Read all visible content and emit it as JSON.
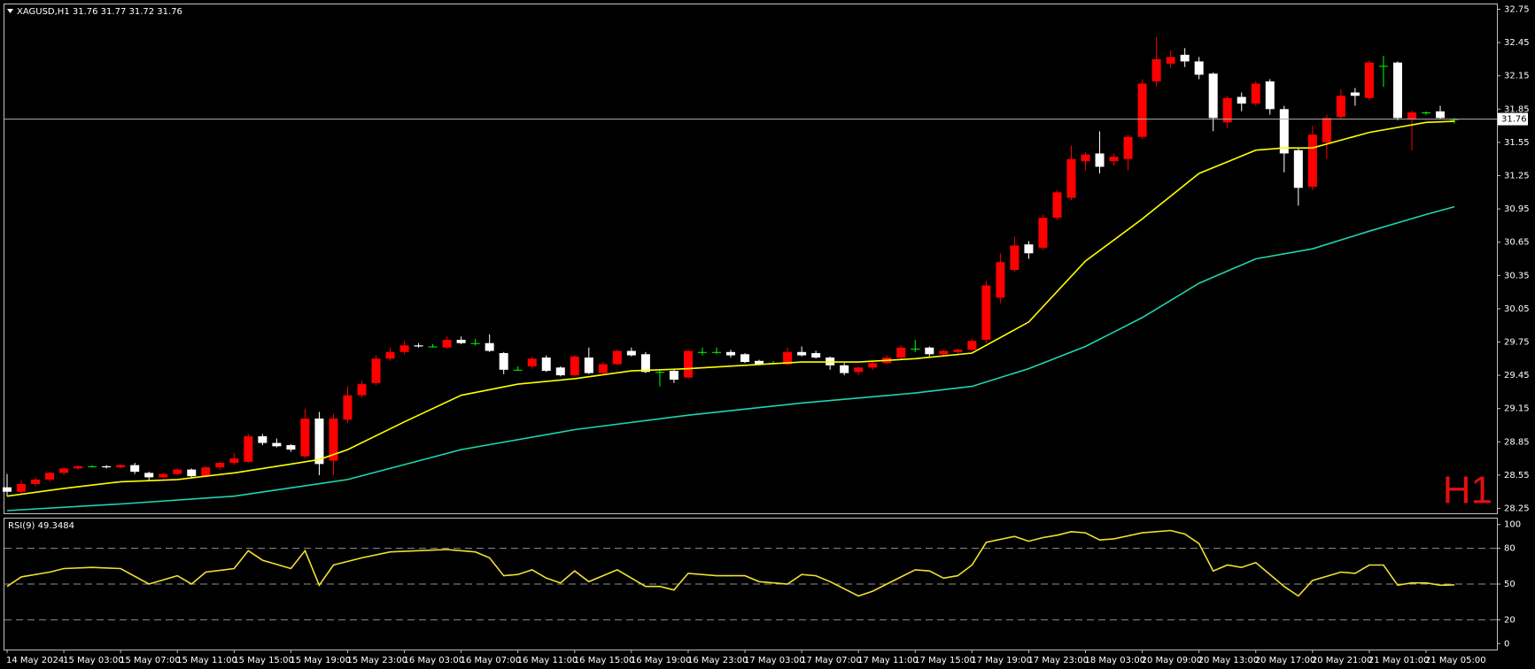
{
  "chart_data": [
    {
      "type": "candlestick",
      "title": "XAGUSD,H1  31.76 31.77 31.72 31.76",
      "watermark": "H1",
      "categories": [
        "14 May 2024",
        null,
        null,
        null,
        "15 May 03:00",
        null,
        null,
        null,
        "15 May 07:00",
        null,
        null,
        null,
        "15 May 11:00",
        null,
        null,
        null,
        "15 May 15:00",
        null,
        null,
        null,
        "15 May 19:00",
        null,
        null,
        null,
        "15 May 23:00",
        null,
        null,
        null,
        "16 May 03:00",
        null,
        null,
        null,
        "16 May 07:00",
        null,
        null,
        null,
        "16 May 11:00",
        null,
        null,
        null,
        "16 May 15:00",
        null,
        null,
        null,
        "16 May 19:00",
        null,
        null,
        null,
        "16 May 23:00",
        null,
        null,
        null,
        "17 May 03:00",
        null,
        null,
        null,
        "17 May 07:00",
        null,
        null,
        null,
        "17 May 11:00",
        null,
        null,
        null,
        "17 May 15:00",
        null,
        null,
        null,
        "17 May 19:00",
        null,
        null,
        null,
        "17 May 23:00",
        null,
        null,
        null,
        "18 May 03:00",
        null,
        null,
        null,
        "20 May 09:00",
        null,
        null,
        null,
        "20 May 13:00",
        null,
        null,
        null,
        "20 May 17:00",
        null,
        null,
        null,
        "20 May 21:00",
        null,
        null,
        null,
        "21 May 01:00",
        null,
        null,
        null,
        "21 May 05:00",
        null,
        null
      ],
      "open": [
        28.44,
        28.4,
        28.47,
        28.51,
        28.57,
        28.61,
        28.63,
        28.63,
        28.62,
        28.64,
        28.57,
        28.53,
        28.56,
        28.6,
        28.54,
        28.62,
        28.66,
        28.67,
        28.9,
        28.84,
        28.82,
        28.72,
        29.06,
        28.68,
        29.05,
        29.27,
        29.38,
        29.6,
        29.66,
        29.72,
        29.71,
        29.7,
        29.77,
        29.74,
        29.74,
        29.65,
        29.5,
        29.53,
        29.61,
        29.52,
        29.45,
        29.61,
        29.47,
        29.55,
        29.67,
        29.64,
        29.48,
        29.49,
        29.43,
        29.66,
        29.66,
        29.66,
        29.64,
        29.58,
        29.56,
        29.55,
        29.66,
        29.65,
        29.61,
        29.54,
        29.48,
        29.52,
        29.56,
        29.61,
        29.69,
        29.7,
        29.64,
        29.66,
        29.68,
        29.77,
        30.15,
        30.4,
        30.63,
        30.6,
        30.87,
        31.05,
        31.38,
        31.45,
        31.38,
        31.4,
        31.6,
        32.1,
        32.26,
        32.34,
        32.28,
        32.17,
        31.73,
        31.96,
        31.9,
        32.1,
        31.85,
        31.48,
        31.15,
        31.55,
        31.78,
        32.0,
        31.95,
        32.24,
        32.27,
        31.76,
        31.82,
        31.83,
        31.76
      ],
      "high": [
        28.56,
        28.5,
        28.53,
        28.58,
        28.62,
        28.64,
        28.64,
        28.64,
        28.65,
        28.66,
        28.58,
        28.57,
        28.61,
        28.61,
        28.63,
        28.67,
        28.75,
        28.92,
        28.92,
        28.88,
        28.83,
        29.15,
        29.12,
        29.1,
        29.35,
        29.4,
        29.63,
        29.7,
        29.76,
        29.74,
        29.73,
        29.8,
        29.8,
        29.78,
        29.82,
        29.66,
        29.53,
        29.62,
        29.63,
        29.53,
        29.63,
        29.7,
        29.57,
        29.68,
        29.7,
        29.66,
        29.5,
        29.51,
        29.68,
        29.7,
        29.7,
        29.68,
        29.65,
        29.59,
        29.58,
        29.7,
        29.71,
        29.67,
        29.62,
        29.56,
        29.53,
        29.57,
        29.63,
        29.72,
        29.77,
        29.71,
        29.68,
        29.69,
        29.78,
        30.3,
        30.55,
        30.7,
        30.66,
        30.9,
        31.12,
        31.52,
        31.46,
        31.65,
        31.45,
        31.62,
        32.12,
        32.5,
        32.38,
        32.4,
        32.32,
        32.18,
        31.97,
        32.0,
        32.1,
        32.12,
        31.88,
        31.5,
        31.7,
        31.8,
        32.03,
        32.04,
        32.29,
        32.33,
        32.28,
        31.84,
        31.83,
        31.88,
        31.77
      ],
      "low": [
        28.36,
        28.38,
        28.45,
        28.49,
        28.55,
        28.6,
        28.62,
        28.61,
        28.61,
        28.56,
        28.5,
        28.52,
        28.55,
        28.53,
        28.53,
        28.6,
        28.64,
        28.66,
        28.82,
        28.8,
        28.76,
        28.7,
        28.55,
        28.55,
        29.02,
        29.25,
        29.36,
        29.58,
        29.64,
        29.7,
        29.7,
        29.69,
        29.73,
        29.72,
        29.66,
        29.46,
        29.49,
        29.51,
        29.48,
        29.44,
        29.44,
        29.46,
        29.46,
        29.54,
        29.62,
        29.47,
        29.35,
        29.38,
        29.42,
        29.63,
        29.64,
        29.61,
        29.56,
        29.54,
        29.55,
        29.54,
        29.62,
        29.6,
        29.5,
        29.45,
        29.45,
        29.5,
        29.55,
        29.6,
        29.66,
        29.62,
        29.63,
        29.65,
        29.67,
        29.74,
        30.1,
        30.38,
        30.5,
        30.58,
        30.85,
        31.03,
        31.3,
        31.27,
        31.34,
        31.3,
        31.58,
        32.05,
        32.22,
        32.23,
        32.12,
        31.65,
        31.68,
        31.83,
        31.88,
        31.8,
        31.28,
        30.98,
        31.12,
        31.4,
        31.76,
        31.88,
        31.93,
        32.05,
        31.75,
        31.48,
        31.8,
        31.76,
        31.72
      ],
      "close": [
        28.4,
        28.47,
        28.51,
        28.57,
        28.61,
        28.63,
        28.63,
        28.62,
        28.64,
        28.58,
        28.53,
        28.56,
        28.6,
        28.54,
        28.62,
        28.66,
        28.7,
        28.9,
        28.84,
        28.81,
        28.78,
        29.06,
        28.65,
        29.06,
        29.27,
        29.37,
        29.6,
        29.66,
        29.72,
        29.71,
        29.71,
        29.77,
        29.74,
        29.74,
        29.67,
        29.5,
        29.5,
        29.6,
        29.49,
        29.45,
        29.62,
        29.47,
        29.55,
        29.67,
        29.63,
        29.48,
        29.48,
        29.41,
        29.67,
        29.66,
        29.66,
        29.63,
        29.57,
        29.55,
        29.56,
        29.66,
        29.63,
        29.61,
        29.54,
        29.47,
        29.52,
        29.56,
        29.61,
        29.7,
        29.69,
        29.64,
        29.67,
        29.68,
        29.76,
        30.26,
        30.47,
        30.62,
        30.55,
        30.87,
        31.1,
        31.4,
        31.44,
        31.33,
        31.42,
        31.6,
        32.08,
        32.3,
        32.32,
        32.28,
        32.16,
        31.77,
        31.95,
        31.9,
        32.08,
        31.85,
        31.45,
        31.14,
        31.62,
        31.77,
        31.97,
        31.97,
        32.27,
        32.24,
        31.77,
        31.82,
        31.82,
        31.77,
        31.76
      ],
      "up_color": "#ff0000",
      "down_color": "#ffffff",
      "doji_color": "#00ff00",
      "overlays": [
        {
          "color": "#ffff00",
          "x": [
            0,
            4,
            8,
            12,
            16,
            20,
            22,
            24,
            28,
            32,
            36,
            40,
            44,
            48,
            52,
            56,
            60,
            64,
            68,
            72,
            76,
            80,
            84,
            88,
            90,
            92,
            96,
            100,
            102
          ],
          "values": [
            28.36,
            28.43,
            28.49,
            28.51,
            28.57,
            28.65,
            28.69,
            28.78,
            29.03,
            29.27,
            29.37,
            29.42,
            29.49,
            29.51,
            29.54,
            29.57,
            29.57,
            29.6,
            29.65,
            29.93,
            30.48,
            30.86,
            31.27,
            31.48,
            31.5,
            31.5,
            31.64,
            31.73,
            31.74
          ]
        },
        {
          "color": "#1fd6b0",
          "x": [
            0,
            8,
            16,
            24,
            32,
            40,
            48,
            56,
            64,
            68,
            72,
            76,
            80,
            84,
            88,
            92,
            96,
            100,
            102
          ],
          "values": [
            28.23,
            28.29,
            28.36,
            28.51,
            28.78,
            28.96,
            29.09,
            29.2,
            29.29,
            29.35,
            29.51,
            29.71,
            29.97,
            30.28,
            30.5,
            30.59,
            30.75,
            30.9,
            30.97
          ]
        }
      ],
      "last_price": 31.76,
      "ylim": [
        28.206,
        32.794
      ],
      "yticks": [
        28.25,
        28.55,
        28.85,
        29.15,
        29.45,
        29.75,
        30.05,
        30.35,
        30.65,
        30.95,
        31.25,
        31.55,
        31.85,
        32.15,
        32.45,
        32.75
      ]
    },
    {
      "type": "line",
      "title": "RSI(9) 49.3484",
      "color": "#f0e030",
      "x": [
        0,
        1,
        3,
        4,
        6,
        8,
        10,
        12,
        13,
        14,
        16,
        17,
        18,
        20,
        21,
        22,
        23,
        25,
        27,
        29,
        31,
        33,
        34,
        35,
        36,
        37,
        38,
        39,
        40,
        41,
        43,
        45,
        46,
        47,
        48,
        50,
        52,
        53,
        55,
        56,
        57,
        58,
        60,
        61,
        62,
        64,
        65,
        66,
        67,
        68,
        69,
        71,
        72,
        73,
        74,
        75,
        76,
        77,
        78,
        80,
        82,
        83,
        84,
        85,
        86,
        87,
        88,
        89,
        90,
        91,
        92,
        94,
        95,
        96,
        97,
        98,
        99,
        100,
        101,
        102
      ],
      "values": [
        48,
        56,
        60,
        63,
        64,
        63,
        50,
        57,
        50,
        60,
        63,
        78,
        70,
        63,
        78,
        49,
        66,
        72,
        77,
        78,
        79,
        77,
        72,
        57,
        58,
        62,
        55,
        51,
        61,
        52,
        62,
        48,
        48,
        45,
        59,
        57,
        57,
        52,
        50,
        58,
        57,
        52,
        40,
        44,
        50,
        62,
        61,
        55,
        57,
        66,
        85,
        90,
        86,
        89,
        91,
        94,
        93,
        87,
        88,
        93,
        95,
        92,
        84,
        61,
        66,
        64,
        68,
        58,
        48,
        40,
        53,
        60,
        59,
        66,
        66,
        49,
        51,
        51,
        49,
        49.3484
      ],
      "levels": [
        80,
        50,
        20
      ],
      "ylim": [
        -5,
        105
      ],
      "yticks": [
        100,
        80,
        50,
        20,
        0
      ]
    }
  ]
}
